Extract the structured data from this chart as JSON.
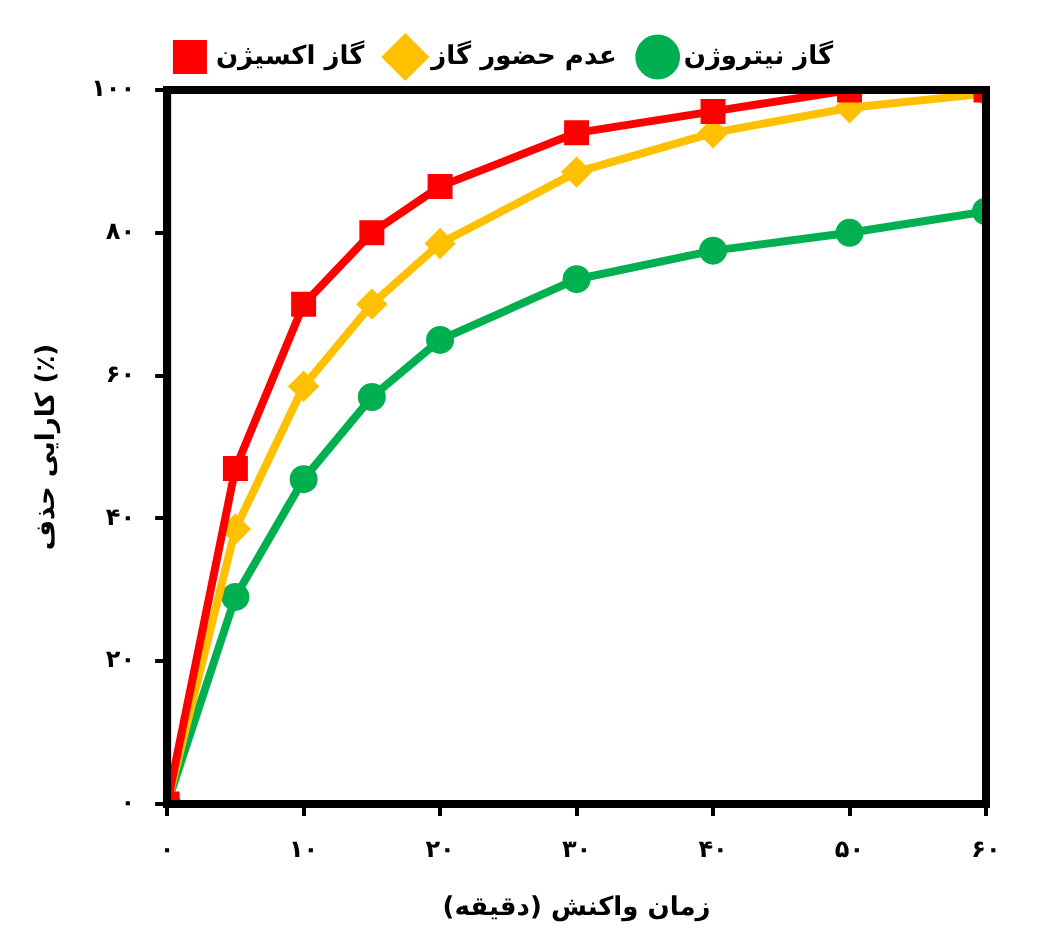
{
  "chart_data": {
    "type": "line",
    "xlabel": "زمان واکنش (دقیقه)",
    "ylabel": "کارایی حذف (٪)",
    "x": [
      0,
      5,
      10,
      15,
      20,
      30,
      40,
      50,
      60
    ],
    "series": [
      {
        "name": "گاز اکسیژن",
        "color": "#ff0000",
        "marker": "square",
        "values": [
          0,
          47,
          70,
          80,
          86.5,
          94,
          97,
          100,
          100
        ]
      },
      {
        "name": "عدم حضور گاز",
        "color": "#ffc000",
        "marker": "diamond",
        "values": [
          0,
          38.5,
          58.5,
          70,
          78.5,
          88.5,
          94,
          97.5,
          99.5
        ]
      },
      {
        "name": "گاز نیتروژن",
        "color": "#00b050",
        "marker": "circle",
        "values": [
          0,
          29,
          45.5,
          57,
          65,
          73.5,
          77.5,
          80,
          83
        ]
      }
    ],
    "xlim": [
      0,
      60
    ],
    "xticks": [
      {
        "value": 0,
        "label": "۰"
      },
      {
        "value": 10,
        "label": "۱۰"
      },
      {
        "value": 20,
        "label": "۲۰"
      },
      {
        "value": 30,
        "label": "۳۰"
      },
      {
        "value": 40,
        "label": "۴۰"
      },
      {
        "value": 50,
        "label": "۵۰"
      },
      {
        "value": 60,
        "label": "۶۰"
      }
    ],
    "ylim": [
      0,
      100
    ],
    "yticks": [
      {
        "value": 0,
        "label": "۰"
      },
      {
        "value": 20,
        "label": "۲۰"
      },
      {
        "value": 40,
        "label": "۴۰"
      },
      {
        "value": 60,
        "label": "۶۰"
      },
      {
        "value": 80,
        "label": "۸۰"
      },
      {
        "value": 100,
        "label": "۱۰۰"
      }
    ],
    "grid": false,
    "legend": "top",
    "line_style": "solid"
  }
}
